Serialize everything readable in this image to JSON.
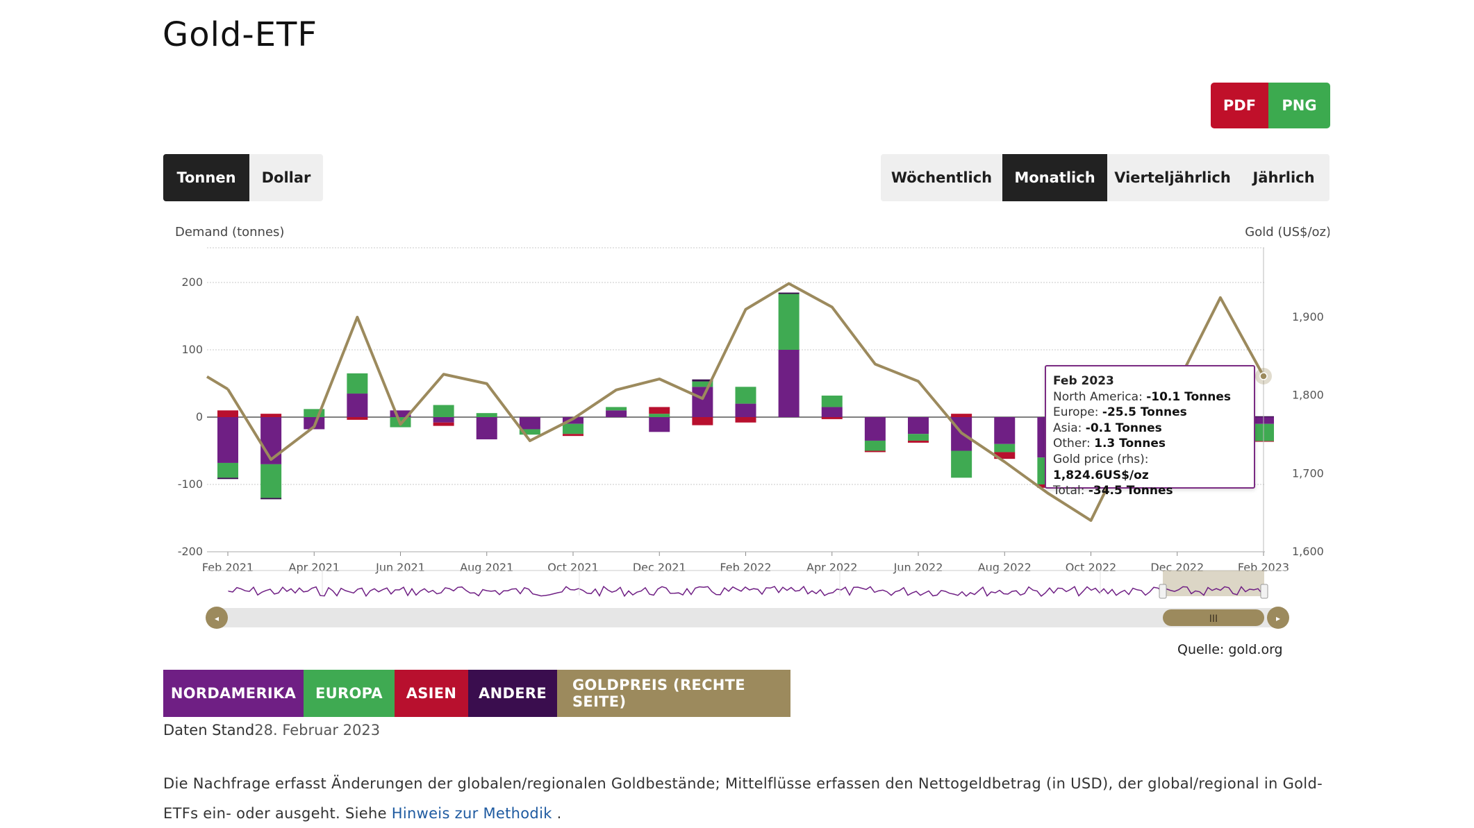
{
  "page": {
    "title": "Gold-ETF",
    "export": {
      "pdf": "PDF",
      "png": "PNG"
    },
    "unit_tabs": [
      {
        "label": "Tonnen",
        "active": true
      },
      {
        "label": "Dollar",
        "active": false
      }
    ],
    "period_tabs": [
      {
        "label": "Wöchentlich",
        "active": false
      },
      {
        "label": "Monatlich",
        "active": true
      },
      {
        "label": "Vierteljährlich",
        "active": false
      },
      {
        "label": "Jährlich",
        "active": false
      }
    ],
    "source": "Quelle: gold.org",
    "legend": [
      {
        "label": "NORDAMERIKA",
        "color": "#6f1f84"
      },
      {
        "label": "EUROPA",
        "color": "#3faa52"
      },
      {
        "label": "ASIEN",
        "color": "#b8102e"
      },
      {
        "label": "ANDERE",
        "color": "#3a0d4e"
      },
      {
        "label": "GOLDPREIS (RECHTE SEITE)",
        "color": "#9c8a5d"
      }
    ],
    "data_date_label": "Daten Stand",
    "data_date_value": "28. Februar 2023",
    "description": "Die Nachfrage erfasst Änderungen der globalen/regionalen Goldbestände; Mittelflüsse erfassen den Nettogeldbetrag (in USD), der global/regional in Gold-ETFs ein- oder ausgeht. Siehe",
    "method_link": "Hinweis zur Methodik",
    "description_end": "."
  },
  "tooltip": {
    "title": "Feb 2023",
    "rows": [
      {
        "label": "North America: ",
        "value": "-10.1 Tonnes"
      },
      {
        "label": "Europe: ",
        "value": "-25.5 Tonnes"
      },
      {
        "label": "Asia: ",
        "value": "-0.1 Tonnes"
      },
      {
        "label": "Other: ",
        "value": "1.3 Tonnes"
      },
      {
        "label": "Gold price (rhs): ",
        "value": "1,824.6US$/oz"
      },
      {
        "label": "Total: ",
        "value": "-34.5 Tonnes"
      }
    ]
  },
  "chart_data": {
    "type": "bar",
    "stacked": true,
    "ylabel": "Demand (tonnes)",
    "y2label": "Gold (US$/oz)",
    "ylim": [
      -200,
      200
    ],
    "yticks": [
      -200,
      -100,
      0,
      100,
      200
    ],
    "y2lim": [
      1600,
      1900
    ],
    "y2ticks": [
      "1,600",
      "1,700",
      "1,800",
      "1,900"
    ],
    "x_tick_labels": [
      "Feb 2021",
      "Apr 2021",
      "Jun 2021",
      "Aug 2021",
      "Oct 2021",
      "Dec 2021",
      "Feb 2022",
      "Apr 2022",
      "Jun 2022",
      "Aug 2022",
      "Oct 2022",
      "Dec 2022",
      "Feb 2023"
    ],
    "categories": [
      "Feb 2021",
      "Mar 2021",
      "Apr 2021",
      "May 2021",
      "Jun 2021",
      "Jul 2021",
      "Aug 2021",
      "Sep 2021",
      "Oct 2021",
      "Nov 2021",
      "Dec 2021",
      "Jan 2022",
      "Feb 2022",
      "Mar 2022",
      "Apr 2022",
      "May 2022",
      "Jun 2022",
      "Jul 2022",
      "Aug 2022",
      "Sep 2022",
      "Oct 2022",
      "Nov 2022",
      "Dec 2022",
      "Jan 2023",
      "Feb 2023"
    ],
    "series": [
      {
        "name": "NORDAMERIKA",
        "color": "#6f1f84",
        "values": [
          -68,
          -70,
          -18,
          35,
          10,
          -8,
          -33,
          -18,
          -10,
          10,
          -22,
          45,
          20,
          100,
          15,
          -35,
          -25,
          -50,
          -40,
          -60,
          -45,
          -20,
          0,
          0,
          -10.1
        ]
      },
      {
        "name": "EUROPA",
        "color": "#3faa52",
        "values": [
          -22,
          -50,
          12,
          30,
          -15,
          18,
          6,
          -8,
          -15,
          5,
          5,
          8,
          25,
          83,
          17,
          -15,
          -10,
          -40,
          -12,
          -40,
          -45,
          -30,
          0,
          -40,
          -25.5
        ]
      },
      {
        "name": "ASIEN",
        "color": "#b8102e",
        "values": [
          10,
          5,
          0,
          -4,
          0,
          -5,
          0,
          0,
          -3,
          0,
          10,
          -12,
          -8,
          0,
          -3,
          -2,
          -3,
          5,
          -10,
          -5,
          0,
          0,
          0,
          0,
          -0.1
        ]
      },
      {
        "name": "ANDERE",
        "color": "#3a0d4e",
        "values": [
          -2,
          -2,
          0,
          0,
          0,
          0,
          0,
          0,
          0,
          0,
          0,
          3,
          0,
          2,
          0,
          0,
          0,
          0,
          0,
          0,
          0,
          0,
          0,
          10,
          1.3
        ]
      }
    ],
    "gold_price": {
      "name": "GOLDPREIS (RECHTE SEITE)",
      "color": "#9c8a5d",
      "values": [
        1808,
        1718,
        1760,
        1900,
        1763,
        1827,
        1815,
        1742,
        1770,
        1807,
        1821,
        1796,
        1910,
        1943,
        1913,
        1840,
        1818,
        1752,
        1715,
        1675,
        1640,
        1752,
        1815,
        1925,
        1824.6
      ]
    },
    "grid": true,
    "legend_position": "bottom"
  }
}
